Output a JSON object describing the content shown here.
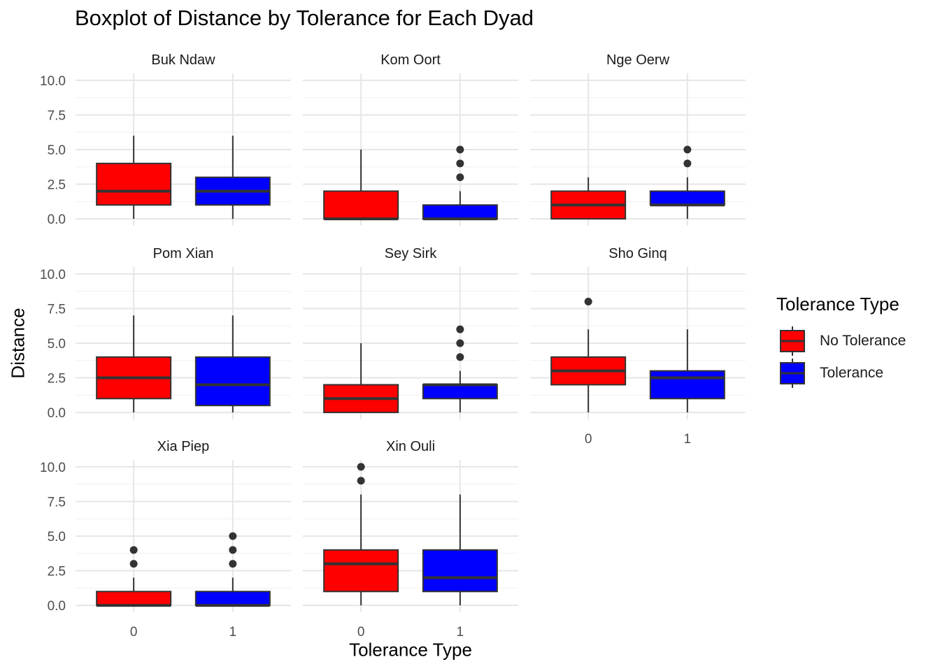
{
  "chart_data": {
    "type": "boxplot",
    "title": "Boxplot of Distance by Tolerance for Each Dyad",
    "xlabel": "Tolerance Type",
    "ylabel": "Distance",
    "ylim": [
      0,
      10
    ],
    "yticks": [
      "0.0",
      "2.5",
      "5.0",
      "7.5",
      "10.0"
    ],
    "categories": [
      "0",
      "1"
    ],
    "legend": {
      "title": "Tolerance Type",
      "position": "right",
      "entries": [
        {
          "label": "No Tolerance",
          "color": "#ff0000"
        },
        {
          "label": "Tolerance",
          "color": "#0000ff"
        }
      ]
    },
    "grid": true,
    "panels": [
      {
        "name": "Buk Ndaw",
        "boxes": [
          {
            "category": "0",
            "series": "No Tolerance",
            "min": 0,
            "q1": 1,
            "median": 2,
            "q3": 4,
            "max": 6,
            "outliers": []
          },
          {
            "category": "1",
            "series": "Tolerance",
            "min": 0,
            "q1": 1,
            "median": 2,
            "q3": 3,
            "max": 6,
            "outliers": []
          }
        ]
      },
      {
        "name": "Kom Oort",
        "boxes": [
          {
            "category": "0",
            "series": "No Tolerance",
            "min": 0,
            "q1": 0,
            "median": 0,
            "q3": 2,
            "max": 5,
            "outliers": []
          },
          {
            "category": "1",
            "series": "Tolerance",
            "min": 0,
            "q1": 0,
            "median": 0,
            "q3": 1,
            "max": 2,
            "outliers": [
              3,
              4,
              5
            ]
          }
        ]
      },
      {
        "name": "Nge Oerw",
        "boxes": [
          {
            "category": "0",
            "series": "No Tolerance",
            "min": 0,
            "q1": 0,
            "median": 1,
            "q3": 2,
            "max": 3,
            "outliers": []
          },
          {
            "category": "1",
            "series": "Tolerance",
            "min": 0,
            "q1": 1,
            "median": 1,
            "q3": 2,
            "max": 3,
            "outliers": [
              4,
              5
            ]
          }
        ]
      },
      {
        "name": "Pom Xian",
        "boxes": [
          {
            "category": "0",
            "series": "No Tolerance",
            "min": 0,
            "q1": 1,
            "median": 2.5,
            "q3": 4,
            "max": 7,
            "outliers": []
          },
          {
            "category": "1",
            "series": "Tolerance",
            "min": 0,
            "q1": 0.5,
            "median": 2,
            "q3": 4,
            "max": 7,
            "outliers": []
          }
        ]
      },
      {
        "name": "Sey Sirk",
        "boxes": [
          {
            "category": "0",
            "series": "No Tolerance",
            "min": 0,
            "q1": 0,
            "median": 1,
            "q3": 2,
            "max": 5,
            "outliers": []
          },
          {
            "category": "1",
            "series": "Tolerance",
            "min": 0,
            "q1": 1,
            "median": 2,
            "q3": 2,
            "max": 3,
            "outliers": [
              4,
              5,
              6
            ]
          }
        ]
      },
      {
        "name": "Sho Ginq",
        "boxes": [
          {
            "category": "0",
            "series": "No Tolerance",
            "min": 0,
            "q1": 2,
            "median": 3,
            "q3": 4,
            "max": 6,
            "outliers": [
              8
            ]
          },
          {
            "category": "1",
            "series": "Tolerance",
            "min": 0,
            "q1": 1,
            "median": 2.5,
            "q3": 3,
            "max": 6,
            "outliers": []
          }
        ]
      },
      {
        "name": "Xia Piep",
        "boxes": [
          {
            "category": "0",
            "series": "No Tolerance",
            "min": 0,
            "q1": 0,
            "median": 0,
            "q3": 1,
            "max": 2,
            "outliers": [
              3,
              4
            ]
          },
          {
            "category": "1",
            "series": "Tolerance",
            "min": 0,
            "q1": 0,
            "median": 0,
            "q3": 1,
            "max": 2,
            "outliers": [
              3,
              4,
              5
            ]
          }
        ]
      },
      {
        "name": "Xin Ouli",
        "boxes": [
          {
            "category": "0",
            "series": "No Tolerance",
            "min": 0,
            "q1": 1,
            "median": 3,
            "q3": 4,
            "max": 8,
            "outliers": [
              9,
              10
            ]
          },
          {
            "category": "1",
            "series": "Tolerance",
            "min": 0,
            "q1": 1,
            "median": 2,
            "q3": 4,
            "max": 8,
            "outliers": []
          }
        ]
      }
    ]
  }
}
